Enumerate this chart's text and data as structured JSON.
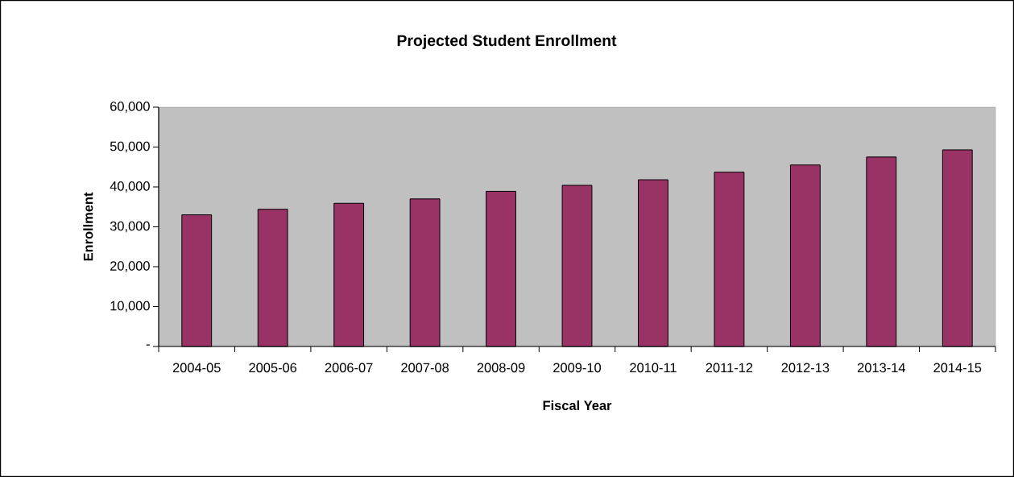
{
  "chart_data": {
    "type": "bar",
    "title": "Projected Student Enrollment",
    "xlabel": "Fiscal Year",
    "ylabel": "Enrollment",
    "categories": [
      "2004-05",
      "2005-06",
      "2006-07",
      "2007-08",
      "2008-09",
      "2009-10",
      "2010-11",
      "2011-12",
      "2012-13",
      "2013-14",
      "2014-15"
    ],
    "values": [
      33000,
      34400,
      35900,
      37000,
      38900,
      40400,
      41800,
      43700,
      45500,
      47500,
      49300
    ],
    "color": "#993366",
    "ylim": [
      0,
      60000
    ],
    "yticks": [
      {
        "value": 0,
        "label": "-"
      },
      {
        "value": 10000,
        "label": "10,000"
      },
      {
        "value": 20000,
        "label": "20,000"
      },
      {
        "value": 30000,
        "label": "30,000"
      },
      {
        "value": 40000,
        "label": "40,000"
      },
      {
        "value": 50000,
        "label": "50,000"
      },
      {
        "value": 60000,
        "label": "60,000"
      }
    ],
    "grid": false
  }
}
